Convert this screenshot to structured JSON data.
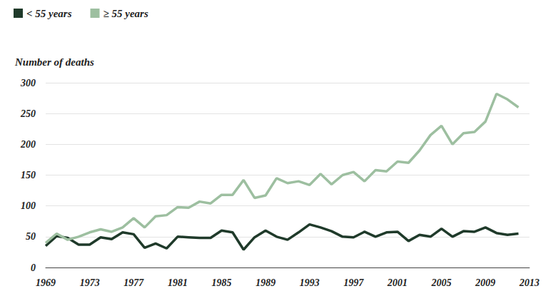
{
  "chart_data": {
    "type": "line",
    "y_label": "Number of deaths",
    "x": [
      1969,
      1970,
      1971,
      1972,
      1973,
      1974,
      1975,
      1976,
      1977,
      1978,
      1979,
      1980,
      1981,
      1982,
      1983,
      1984,
      1985,
      1986,
      1987,
      1988,
      1989,
      1990,
      1991,
      1992,
      1993,
      1994,
      1995,
      1996,
      1997,
      1998,
      1999,
      2000,
      2001,
      2002,
      2003,
      2004,
      2005,
      2006,
      2007,
      2008,
      2009,
      2010,
      2011,
      2012
    ],
    "series": [
      {
        "name": "< 55 years",
        "color": "#1f3a2a",
        "values": [
          35,
          51,
          48,
          37,
          37,
          49,
          46,
          57,
          54,
          32,
          39,
          31,
          50,
          49,
          48,
          48,
          60,
          57,
          29,
          49,
          60,
          50,
          45,
          57,
          70,
          65,
          59,
          50,
          49,
          58,
          50,
          57,
          58,
          43,
          53,
          50,
          63,
          50,
          59,
          58,
          65,
          56,
          53,
          55
        ]
      },
      {
        "name": "≥ 55 years",
        "color": "#9dbfa0",
        "values": [
          40,
          55,
          45,
          50,
          57,
          62,
          58,
          65,
          80,
          65,
          83,
          85,
          98,
          97,
          107,
          104,
          118,
          118,
          142,
          113,
          117,
          145,
          137,
          140,
          134,
          152,
          135,
          150,
          155,
          140,
          158,
          156,
          172,
          170,
          190,
          215,
          230,
          200,
          218,
          220,
          237,
          282,
          273,
          260
        ]
      }
    ],
    "xlim": [
      1969,
      2013
    ],
    "xticks": [
      1969,
      1973,
      1977,
      1981,
      1985,
      1989,
      1993,
      1997,
      2001,
      2005,
      2009,
      2013
    ],
    "ylim": [
      0,
      300
    ],
    "yticks": [
      0,
      50,
      100,
      150,
      200,
      250,
      300
    ],
    "grid": true,
    "legend": "top-left"
  }
}
